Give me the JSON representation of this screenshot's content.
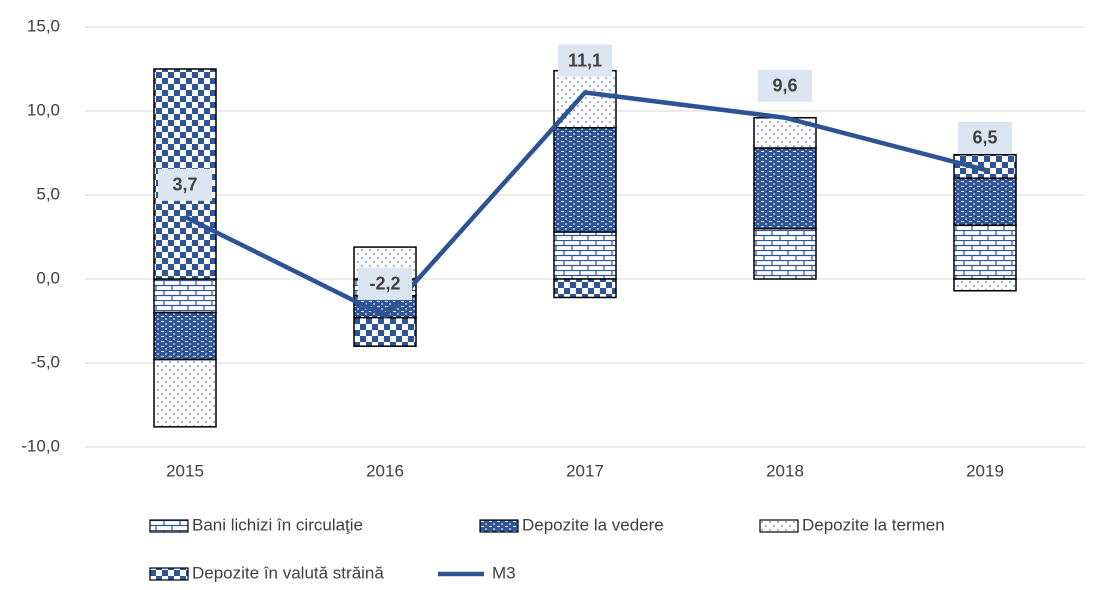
{
  "chart_data": {
    "type": "bar",
    "categories": [
      "2015",
      "2016",
      "2017",
      "2018",
      "2019"
    ],
    "series": [
      {
        "name": "Bani lichizi în circulaţie",
        "color": "#2f5597",
        "pattern": "brick",
        "values": [
          -2.0,
          -1.0,
          2.8,
          3.0,
          3.2
        ]
      },
      {
        "name": "Depozite la vedere",
        "color": "#2f5597",
        "pattern": "dense",
        "values": [
          -2.8,
          -1.3,
          6.2,
          4.8,
          2.8
        ]
      },
      {
        "name": "Depozite la termen",
        "color": "#2f5597",
        "pattern": "dots",
        "values": [
          -4.0,
          1.9,
          3.4,
          1.8,
          -0.7
        ]
      },
      {
        "name": "Depozite în valută străină",
        "color": "#2f5597",
        "pattern": "checker",
        "values": [
          12.5,
          -1.7,
          -1.1,
          0,
          1.4
        ]
      },
      {
        "name": "M3",
        "type": "line",
        "color": "#2e5395",
        "values": [
          3.7,
          -2.2,
          11.1,
          9.6,
          6.5
        ],
        "value_labels": [
          "3,7",
          "-2,2",
          "11,1",
          "9,6",
          "6,5"
        ]
      }
    ],
    "ylim": [
      -10,
      15
    ],
    "yticks": [
      {
        "value": -10,
        "label": "-10,0"
      },
      {
        "value": -5,
        "label": "-5,0"
      },
      {
        "value": 0,
        "label": "0,0"
      },
      {
        "value": 5,
        "label": "5,0"
      },
      {
        "value": 10,
        "label": "10,0"
      },
      {
        "value": 15,
        "label": "15,0"
      }
    ],
    "grid": true
  }
}
